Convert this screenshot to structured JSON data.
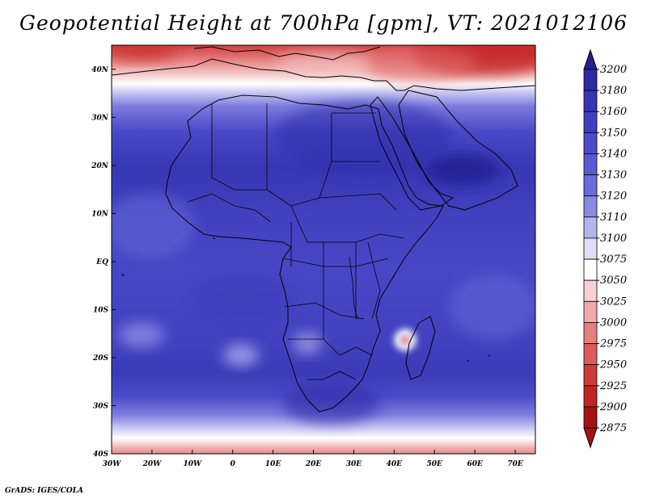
{
  "title": "Geopotential Height at 700hPa [gpm], VT: 2021012106",
  "credit": "GrADS: IGES/COLA",
  "map": {
    "lon_range": [
      -30,
      75
    ],
    "lat_range": [
      -40,
      45
    ],
    "lat_ticks": [
      {
        "value": 40,
        "label": "40N"
      },
      {
        "value": 30,
        "label": "30N"
      },
      {
        "value": 20,
        "label": "20N"
      },
      {
        "value": 10,
        "label": "10N"
      },
      {
        "value": 0,
        "label": "EQ"
      },
      {
        "value": -10,
        "label": "10S"
      },
      {
        "value": -20,
        "label": "20S"
      },
      {
        "value": -30,
        "label": "30S"
      },
      {
        "value": -40,
        "label": "40S"
      }
    ],
    "lon_ticks": [
      {
        "value": -30,
        "label": "30W"
      },
      {
        "value": -20,
        "label": "20W"
      },
      {
        "value": -10,
        "label": "10W"
      },
      {
        "value": 0,
        "label": "0"
      },
      {
        "value": 10,
        "label": "10E"
      },
      {
        "value": 20,
        "label": "20E"
      },
      {
        "value": 30,
        "label": "30E"
      },
      {
        "value": 40,
        "label": "40E"
      },
      {
        "value": 50,
        "label": "50E"
      },
      {
        "value": 60,
        "label": "60E"
      },
      {
        "value": 70,
        "label": "70E"
      }
    ]
  },
  "colorbar": {
    "levels": [
      "3200",
      "3180",
      "3160",
      "3150",
      "3140",
      "3130",
      "3120",
      "3110",
      "3100",
      "3075",
      "3050",
      "3025",
      "3000",
      "2975",
      "2950",
      "2925",
      "2900",
      "2875"
    ],
    "colors": [
      "#232094",
      "#2b2aa6",
      "#3535b6",
      "#3f3fc3",
      "#4b4bcc",
      "#5a5ad4",
      "#6b6bdc",
      "#8a8ae4",
      "#b5b5ee",
      "#dedef8",
      "#ffffff",
      "#f8d2d2",
      "#f0a8a8",
      "#e68080",
      "#dc5c5c",
      "#d03a3a",
      "#c22424",
      "#a61212"
    ]
  },
  "colors": {
    "background": "#ffffff",
    "ocean_blue": "#4446c4",
    "deep_blue": "#2d2ca8",
    "light_blue": "#8a8ae4",
    "red_high": "#d85050",
    "red_deep": "#c42828",
    "coast": "#000000"
  }
}
